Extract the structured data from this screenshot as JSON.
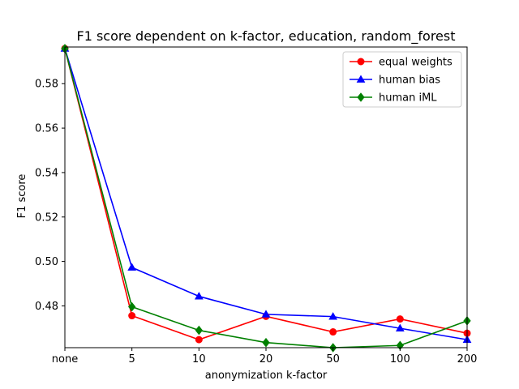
{
  "chart_data": {
    "type": "line",
    "title": "F1 score dependent on k-factor, education, random_forest",
    "xlabel": "anonymization k-factor",
    "ylabel": "F1 score",
    "categories": [
      "none",
      "5",
      "10",
      "20",
      "50",
      "100",
      "200"
    ],
    "ylim": [
      0.4612,
      0.5965
    ],
    "yticks": [
      0.48,
      0.5,
      0.52,
      0.54,
      0.56,
      0.58
    ],
    "ytick_labels": [
      "0.48",
      "0.50",
      "0.52",
      "0.54",
      "0.56",
      "0.58"
    ],
    "grid": false,
    "legend_position": "top-right",
    "series": [
      {
        "name": "equal weights",
        "color": "#ff0000",
        "marker": "circle",
        "values": [
          0.5958,
          0.4756,
          0.4648,
          0.4753,
          0.4683,
          0.4741,
          0.4677
        ]
      },
      {
        "name": "human bias",
        "color": "#0000ff",
        "marker": "triangle",
        "values": [
          0.5958,
          0.4973,
          0.4843,
          0.4762,
          0.4752,
          0.4699,
          0.4648
        ]
      },
      {
        "name": "human iML",
        "color": "#008000",
        "marker": "diamond",
        "values": [
          0.5958,
          0.4796,
          0.469,
          0.4635,
          0.4612,
          0.4622,
          0.4733
        ]
      }
    ]
  }
}
